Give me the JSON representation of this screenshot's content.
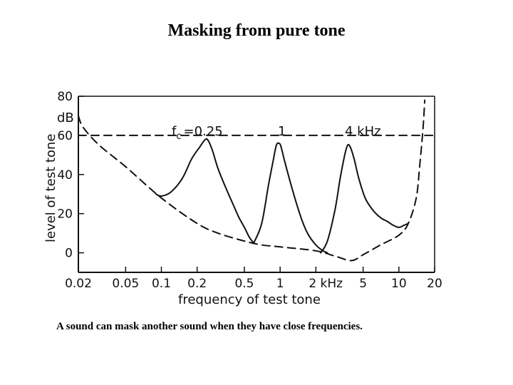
{
  "slide": {
    "title": "Masking from pure tone",
    "caption": "A sound can mask another sound when they have close frequencies."
  },
  "chart_data": {
    "type": "line",
    "title": "",
    "xlabel": "frequency of test tone",
    "ylabel": "level of test tone",
    "yunit": "dB",
    "x_scale": "log",
    "xlim": [
      0.02,
      20
    ],
    "ylim": [
      -10,
      80
    ],
    "grid": false,
    "x_ticks": [
      {
        "value": 0.02,
        "label": "0.02"
      },
      {
        "value": 0.05,
        "label": "0.05"
      },
      {
        "value": 0.1,
        "label": "0.1"
      },
      {
        "value": 0.2,
        "label": "0.2"
      },
      {
        "value": 0.5,
        "label": "0.5"
      },
      {
        "value": 1,
        "label": "1"
      },
      {
        "value": 2,
        "label": "2 kHz"
      },
      {
        "value": 5,
        "label": "5"
      },
      {
        "value": 10,
        "label": "10"
      },
      {
        "value": 20,
        "label": "20"
      }
    ],
    "y_ticks": [
      {
        "value": 80,
        "label": "80"
      },
      {
        "value": 60,
        "label": "60"
      },
      {
        "value": 40,
        "label": "40"
      },
      {
        "value": 20,
        "label": "20"
      },
      {
        "value": 0,
        "label": "0"
      }
    ],
    "annotations": {
      "fc_prefix": "f",
      "fc_sub": "c",
      "fc_value": "=0.25",
      "label_1": "1",
      "label_4k": "4 kHz"
    },
    "series": [
      {
        "style": "dashed",
        "x": [
          0.02,
          0.022,
          0.03,
          0.05,
          0.1,
          0.2,
          0.3,
          0.5,
          0.7,
          1,
          2,
          3,
          4,
          5,
          7,
          10,
          12,
          14,
          15,
          16,
          16.5
        ],
        "y": [
          70,
          64,
          55,
          44,
          28,
          15,
          10,
          6,
          4,
          3,
          1,
          -2,
          -4,
          -1,
          4,
          9,
          15,
          28,
          45,
          64,
          78
        ]
      },
      {
        "style": "dashed",
        "x": [
          0.02,
          20
        ],
        "y": [
          60,
          60
        ]
      },
      {
        "style": "solid",
        "x": [
          0.09,
          0.1,
          0.12,
          0.15,
          0.18,
          0.21,
          0.235,
          0.25,
          0.27,
          0.3,
          0.35,
          0.4,
          0.45,
          0.5,
          0.55,
          0.6
        ],
        "y": [
          30,
          29,
          31,
          38,
          48,
          54,
          58,
          57,
          52,
          43,
          33,
          25,
          18,
          13,
          8,
          5
        ]
      },
      {
        "style": "solid",
        "x": [
          0.6,
          0.7,
          0.8,
          0.88,
          0.93,
          0.98,
          1.02,
          1.1,
          1.3,
          1.5,
          1.7,
          2,
          2.3,
          2.5
        ],
        "y": [
          5,
          15,
          35,
          48,
          55,
          56,
          54,
          46,
          30,
          18,
          10,
          4,
          1,
          0
        ]
      },
      {
        "style": "solid",
        "x": [
          2.2,
          2.5,
          2.9,
          3.2,
          3.5,
          3.7,
          3.9,
          4.2,
          4.6,
          5.2,
          6,
          7,
          8,
          9,
          10,
          11,
          12
        ],
        "y": [
          0,
          6,
          22,
          38,
          50,
          55,
          54,
          48,
          38,
          28,
          22,
          18,
          16,
          14,
          13,
          14,
          15
        ]
      }
    ]
  }
}
